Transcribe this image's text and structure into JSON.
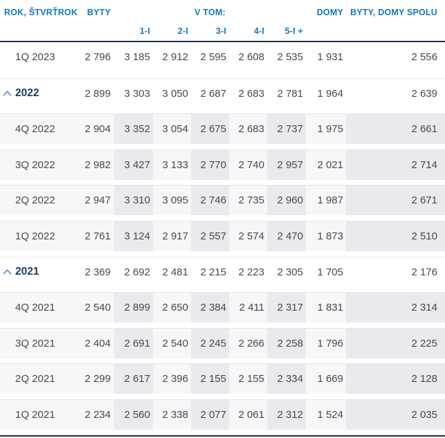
{
  "table": {
    "header": {
      "rok": "ROK, ŠTVRŤROK",
      "byty": "BYTY",
      "v_tom": "V TOM:",
      "domy": "DOMY",
      "spolu": "BYTY, DOMY SPOLU",
      "subcolumns": [
        "1-I",
        "2-I",
        "3-I",
        "4-I",
        "5-I +"
      ]
    },
    "column_keys": [
      "byty",
      "1i",
      "2i",
      "3i",
      "4i",
      "5i-plus",
      "domy",
      "spolu"
    ],
    "rows": [
      {
        "label": "1Q 2023",
        "type": "quarter",
        "shaded": false,
        "collapsible": false,
        "values": [
          "2 796",
          "3 185",
          "2 912",
          "2 595",
          "2 608",
          "2 535",
          "1 931",
          "2 556"
        ]
      },
      {
        "label": "2022",
        "type": "year",
        "shaded": false,
        "collapsible": true,
        "values": [
          "2 899",
          "3 303",
          "3 050",
          "2 687",
          "2 683",
          "2 781",
          "1 964",
          "2 639"
        ]
      },
      {
        "label": "4Q 2022",
        "type": "quarter",
        "shaded": true,
        "collapsible": false,
        "values": [
          "2 904",
          "3 352",
          "3 054",
          "2 675",
          "2 683",
          "2 737",
          "1 975",
          "2 661"
        ]
      },
      {
        "label": "3Q 2022",
        "type": "quarter",
        "shaded": true,
        "collapsible": false,
        "values": [
          "2 982",
          "3 427",
          "3 133",
          "2 770",
          "2 740",
          "2 957",
          "2 021",
          "2 714"
        ]
      },
      {
        "label": "2Q 2022",
        "type": "quarter",
        "shaded": true,
        "collapsible": false,
        "values": [
          "2 947",
          "3 310",
          "3 095",
          "2 746",
          "2 735",
          "2 960",
          "1 987",
          "2 671"
        ]
      },
      {
        "label": "1Q 2022",
        "type": "quarter",
        "shaded": true,
        "collapsible": false,
        "values": [
          "2 761",
          "3 124",
          "2 917",
          "2 557",
          "2 574",
          "2 470",
          "1 873",
          "2 510"
        ]
      },
      {
        "label": "2021",
        "type": "year",
        "shaded": false,
        "collapsible": true,
        "values": [
          "2 369",
          "2 692",
          "2 481",
          "2 215",
          "2 223",
          "2 305",
          "1 705",
          "2 176"
        ]
      },
      {
        "label": "4Q 2021",
        "type": "quarter",
        "shaded": true,
        "collapsible": false,
        "values": [
          "2 540",
          "2 899",
          "2 650",
          "2 384",
          "2 411",
          "2 317",
          "1 831",
          "2 314"
        ]
      },
      {
        "label": "3Q 2021",
        "type": "quarter",
        "shaded": true,
        "collapsible": false,
        "values": [
          "2 404",
          "2 691",
          "2 540",
          "2 245",
          "2 266",
          "2 258",
          "1 796",
          "2 225"
        ]
      },
      {
        "label": "2Q 2021",
        "type": "quarter",
        "shaded": true,
        "collapsible": false,
        "values": [
          "2 299",
          "2 617",
          "2 396",
          "2 155",
          "2 155",
          "2 334",
          "1 669",
          "2 128"
        ]
      },
      {
        "label": "1Q 2021",
        "type": "quarter",
        "shaded": true,
        "collapsible": false,
        "values": [
          "2 234",
          "2 560",
          "2 338",
          "2 077",
          "2 061",
          "2 312",
          "1 524",
          "2 035"
        ]
      }
    ]
  },
  "colors": {
    "header_text": "#1478be",
    "header_line": "#1d2c4b",
    "year_text": "#203c61",
    "chevron": "#4e89c4",
    "body_text": "#48484a",
    "row_base": "#f7f7f9",
    "column_stripe": "#eaeaee",
    "row_separator": "#e5e5e8"
  }
}
